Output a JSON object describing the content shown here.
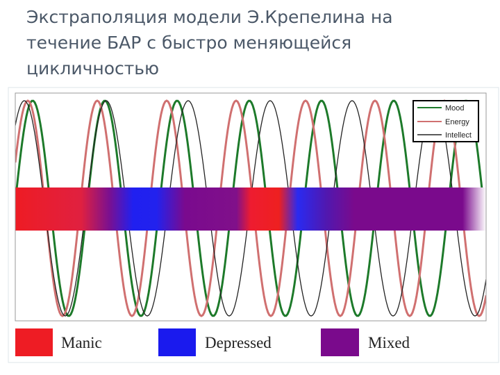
{
  "slide": {
    "title": "Экстраполяция модели Э.Крепелина на течение БАР с быстро меняющейся цикличностью"
  },
  "figure": {
    "legend": [
      "Mood",
      "Energy",
      "Intellect"
    ],
    "key": [
      "Manic",
      "Depressed",
      "Mixed"
    ]
  }
}
